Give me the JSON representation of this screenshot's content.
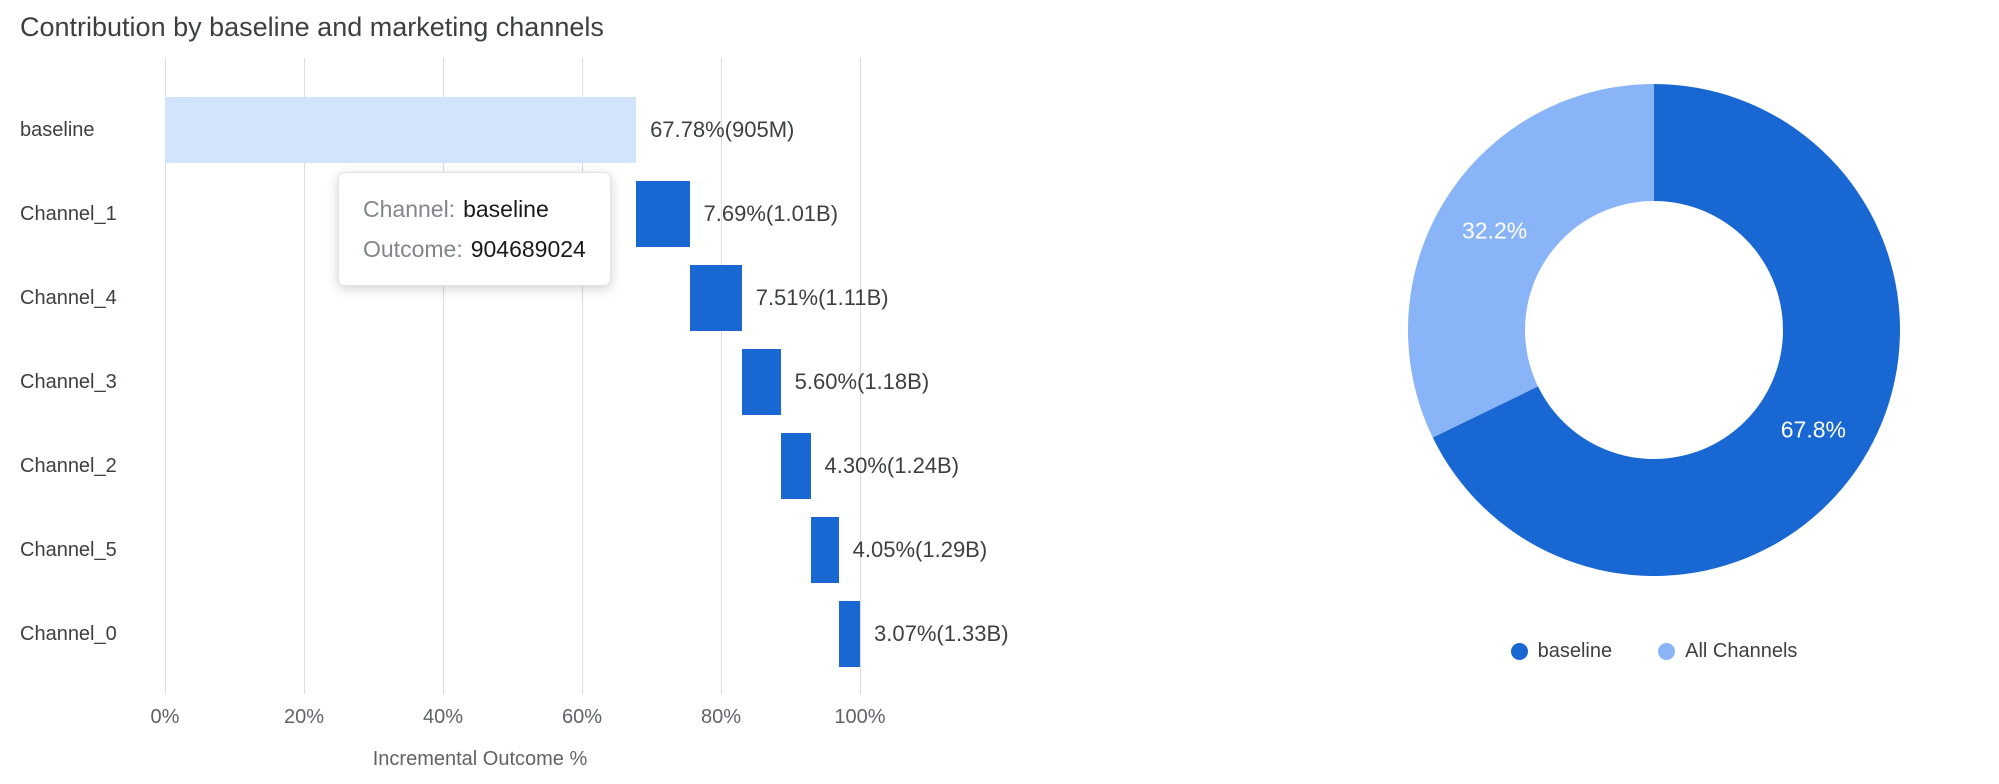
{
  "title": "Contribution by baseline and marketing channels",
  "colors": {
    "baseline_bar": "#d2e3fc",
    "channel_bar": "#1967d2",
    "donut_dark": "#1967d2",
    "donut_light": "#8ab4f8",
    "grid": "#dadce0"
  },
  "tooltip": {
    "channel_label": "Channel:",
    "channel_value": "baseline",
    "outcome_label": "Outcome:",
    "outcome_value": "904689024"
  },
  "chart_data": [
    {
      "type": "bar",
      "subtype": "horizontal-waterfall",
      "title": "Contribution by baseline and marketing channels",
      "xlabel": "Incremental Outcome %",
      "ylabel": "",
      "xlim": [
        0,
        100
      ],
      "grid": true,
      "x_ticks": [
        "0%",
        "20%",
        "40%",
        "60%",
        "80%",
        "100%"
      ],
      "x_tick_values": [
        0,
        20,
        40,
        60,
        80,
        100
      ],
      "categories": [
        "baseline",
        "Channel_1",
        "Channel_4",
        "Channel_3",
        "Channel_2",
        "Channel_5",
        "Channel_0"
      ],
      "segments": [
        {
          "category": "baseline",
          "start": 0,
          "value": 67.78,
          "label": "67.78%(905M)"
        },
        {
          "category": "Channel_1",
          "start": 67.78,
          "value": 7.69,
          "label": "7.69%(1.01B)"
        },
        {
          "category": "Channel_4",
          "start": 75.47,
          "value": 7.51,
          "label": "7.51%(1.11B)"
        },
        {
          "category": "Channel_3",
          "start": 82.98,
          "value": 5.6,
          "label": "5.60%(1.18B)"
        },
        {
          "category": "Channel_2",
          "start": 88.58,
          "value": 4.3,
          "label": "4.30%(1.24B)"
        },
        {
          "category": "Channel_5",
          "start": 92.88,
          "value": 4.05,
          "label": "4.05%(1.29B)"
        },
        {
          "category": "Channel_0",
          "start": 96.93,
          "value": 3.07,
          "label": "3.07%(1.33B)"
        }
      ]
    },
    {
      "type": "pie",
      "subtype": "donut",
      "slices": [
        {
          "label": "baseline",
          "value": 67.8,
          "display": "67.8%",
          "color": "#1967d2"
        },
        {
          "label": "All Channels",
          "value": 32.2,
          "display": "32.2%",
          "color": "#8ab4f8"
        }
      ],
      "legend": [
        {
          "label": "baseline",
          "color": "#1967d2"
        },
        {
          "label": "All Channels",
          "color": "#8ab4f8"
        }
      ],
      "legend_position": "bottom"
    }
  ]
}
